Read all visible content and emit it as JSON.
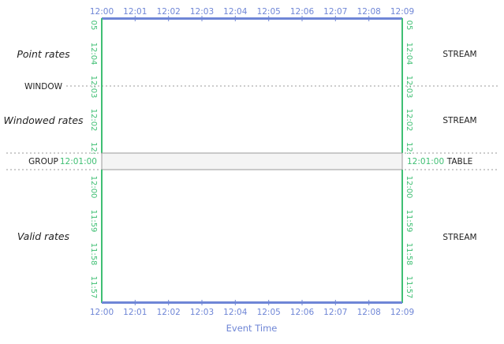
{
  "colors": {
    "time_axis": "#6f86d6",
    "event_time_border": "#6f86d6",
    "processing_time_axis": "#3fbf73",
    "divider": "#9a9a9a",
    "group_band": "#f4f4f4",
    "label_text": "#222222"
  },
  "axis": {
    "title": "Event Time",
    "top_ticks": [
      "12:00",
      "12:01",
      "12:02",
      "12:03",
      "12:04",
      "12:05",
      "12:06",
      "12:07",
      "12:08",
      "12:09"
    ],
    "bottom_ticks": [
      "12:00",
      "12:01",
      "12:02",
      "12:03",
      "12:04",
      "12:05",
      "12:06",
      "12:07",
      "12:08",
      "12:09"
    ]
  },
  "left_labels": {
    "point_rates": "Point rates",
    "window": "WINDOW",
    "windowed_rates": "Windowed rates",
    "group": "GROUP",
    "valid_rates": "Valid rates"
  },
  "right_labels": {
    "top": "STREAM",
    "middle": "STREAM",
    "group": "TABLE",
    "bottom": "STREAM"
  },
  "processing_time": {
    "top_panel_ticks": [
      "05",
      "12:04",
      "12:03",
      "12:02",
      "12:"
    ],
    "group_time": "12:01:00",
    "bottom_panel_ticks": [
      "12:00",
      "11:59",
      "11:58",
      "11:57"
    ]
  }
}
